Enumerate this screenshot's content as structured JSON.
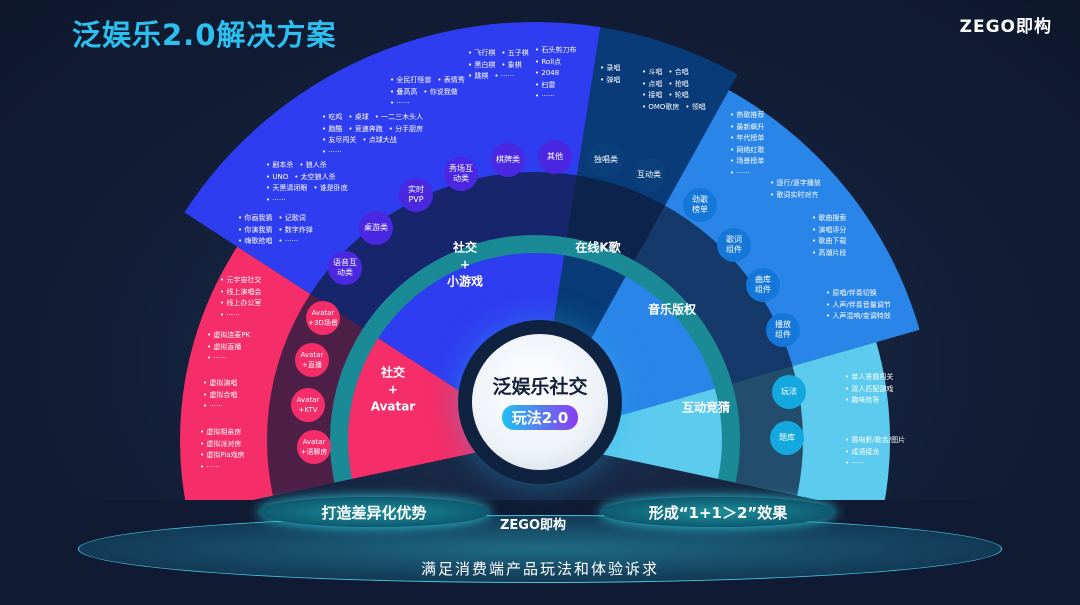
{
  "title": "泛娱乐2.0解决方案",
  "logo": "ZEGO即构",
  "center": {
    "title": "泛娱乐社交",
    "badge": "玩法2.0"
  },
  "colors": {
    "game": "#2f3df0",
    "karaoke": "#083b78",
    "music": "#2a85e8",
    "quiz": "#5ccbee",
    "avatar": "#f52d68",
    "ring": "#1a8a96"
  },
  "sectors": {
    "game": "社交\n+\n小游戏",
    "karaoke": "在线K歌",
    "music": "音乐版权",
    "quiz": "互动竞猜",
    "avatar": "社交\n+\nAvatar"
  },
  "nodes": {
    "game": [
      "语音互\n动类",
      "桌游类",
      "实时\nPVP",
      "秀场互\n动类",
      "棋牌类",
      "其他"
    ],
    "karaoke": [
      "独唱类",
      "互动类"
    ],
    "music": [
      "劲歌\n榜单",
      "歌词\n组件",
      "曲库\n组件",
      "播放\n组件"
    ],
    "quiz": [
      "玩法",
      "题库"
    ],
    "avatar": [
      "Avatar\n+3D场景",
      "Avatar\n+直播",
      "Avatar\n+KTV",
      "Avatar\n+语聊房"
    ]
  },
  "lists": {
    "a": [
      [
        "飞行棋",
        "五子棋"
      ],
      [
        "黑白棋",
        "象棋"
      ],
      [
        "跳棋",
        "······"
      ]
    ],
    "b": [
      [
        "石头剪刀布"
      ],
      [
        "Roll点"
      ],
      [
        "2048"
      ],
      [
        "扫雷"
      ],
      [
        "······"
      ]
    ],
    "c": [
      [
        "全民打怪兽",
        "表情秀"
      ],
      [
        "叠高高",
        "你说我做"
      ],
      [
        "······"
      ]
    ],
    "d": [
      [
        "吃鸡",
        "桌球",
        "一二三木头人"
      ],
      [
        "跑酷",
        "竞速奔跑",
        "分手厨房"
      ],
      [
        "友尽闯关",
        "点球大战"
      ],
      [
        "······"
      ]
    ],
    "e": [
      [
        "剧本杀",
        "狼人杀"
      ],
      [
        "UNO",
        "太空狼人杀"
      ],
      [
        "天黑请闭眼",
        "谁是卧底"
      ],
      [
        "······"
      ]
    ],
    "f": [
      [
        "你画我猜",
        "记歌词"
      ],
      [
        "你演我猜",
        "数字炸弹"
      ],
      [
        "嗨歌抢唱",
        "······"
      ]
    ],
    "g": [
      [
        "录唱"
      ],
      [
        "弹唱"
      ]
    ],
    "h": [
      [
        "斗唱",
        "合唱"
      ],
      [
        "点唱",
        "抢唱"
      ],
      [
        "接唱",
        "轮唱"
      ],
      [
        "OMO歌房",
        "领唱"
      ]
    ],
    "i": [
      [
        "热歌推荐"
      ],
      [
        "最新飙升"
      ],
      [
        "年代榜单"
      ],
      [
        "网络红歌"
      ],
      [
        "场景榜单"
      ],
      [
        "······"
      ]
    ],
    "j": [
      [
        "逐行/逐字播放"
      ],
      [
        "歌词实时对齐"
      ]
    ],
    "k": [
      [
        "歌曲搜索"
      ],
      [
        "演唱评分"
      ],
      [
        "歌曲下载"
      ],
      [
        "高潮片段"
      ]
    ],
    "l": [
      [
        "原唱/伴奏切换"
      ],
      [
        "人声/伴奏音量调节"
      ],
      [
        "人声混响/变调特效"
      ]
    ],
    "m": [
      [
        "单人答题闯关"
      ],
      [
        "双人匹配游戏"
      ],
      [
        "趣味抢答"
      ]
    ],
    "n": [
      [
        "猜电影/歌名/图片"
      ],
      [
        "成语接龙"
      ],
      [
        "······"
      ]
    ],
    "o": [
      [
        "元宇宙社交"
      ],
      [
        "线上演唱会"
      ],
      [
        "线上办公室"
      ],
      [
        "······"
      ]
    ],
    "p": [
      [
        "虚拟连麦PK"
      ],
      [
        "虚拟直播"
      ],
      [
        "······"
      ]
    ],
    "q": [
      [
        "虚拟演唱"
      ],
      [
        "虚拟合唱"
      ],
      [
        "······"
      ]
    ],
    "r": [
      [
        "虚拟相亲房"
      ],
      [
        "虚拟派对房"
      ],
      [
        "虚拟Pia戏房"
      ],
      [
        "······"
      ]
    ]
  },
  "bottom": {
    "left": "打造差异化优势",
    "right": "形成“1+1＞2”效果",
    "logo": "ZEGO即构",
    "base": "满足消费端产品玩法和体验诉求"
  }
}
